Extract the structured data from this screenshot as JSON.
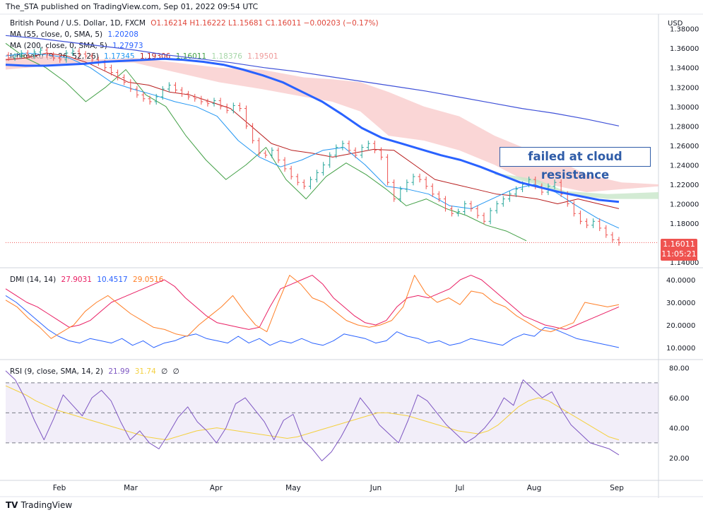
{
  "header": {
    "publisher": "The_STA published on TradingView.com, Sep 01, 2022 09:54 UTC"
  },
  "legend": {
    "symbol": "British Pound / U.S. Dollar, 1D, FXCM",
    "ohlc": "O1.16214 H1.16222 L1.15681 C1.16011 −0.00203 (−0.17%)",
    "ma55": {
      "label": "MA (55, close, 0, SMA, 5)",
      "value": "1.20208"
    },
    "ma200": {
      "label": "MA (200, close, 0, SMA, 5)",
      "value": "1.27973"
    },
    "ichimoku": {
      "label": "Ichimoku (9, 26, 52, 26)",
      "v1": "1.17345",
      "v2": "1.19306",
      "v3": "1.16011",
      "v4": "1.18376",
      "v5": "1.19501"
    },
    "dmi": {
      "label": "DMI (14, 14)",
      "v1": "27.9031",
      "v2": "10.4517",
      "v3": "29.0516"
    },
    "rsi": {
      "label": "RSI (9, close, SMA, 14, 2)",
      "v1": "21.99",
      "v2": "31.74",
      "v3": "∅",
      "v4": "∅"
    }
  },
  "annotation": "failed at cloud resistance",
  "price_tag": {
    "price": "1.16011",
    "countdown": "11:05:21"
  },
  "footer": {
    "brand": "TradingView",
    "logo": "TV logo"
  },
  "colors": {
    "up": "#26a69a",
    "down": "#ef5350",
    "ma55": "#2962ff",
    "ma200": "#3f51d8",
    "tenkan": "#2196f3",
    "kijun": "#b71c1c",
    "chikou": "#43a047",
    "cloud_bear": "#f8c8c8",
    "cloud_bull": "#c8e6c9",
    "dmi_plus": "#e91e63",
    "dmi_minus": "#2962ff",
    "adx": "#ff7f27",
    "rsi": "#7e57c2",
    "rsi_ma": "#f4d03f"
  },
  "chart_data": [
    {
      "type": "candlestick",
      "title": "British Pound / U.S. Dollar, 1D, FXCM",
      "currency_label": "USD",
      "ylim": [
        1.135,
        1.395
      ],
      "y_ticks": [
        "1.38000",
        "1.36000",
        "1.34000",
        "1.32000",
        "1.30000",
        "1.28000",
        "1.26000",
        "1.24000",
        "1.22000",
        "1.20000",
        "1.18000",
        "1.14000"
      ],
      "x_ticks": [
        "Feb",
        "Mar",
        "Apr",
        "May",
        "Jun",
        "Jul",
        "Aug",
        "Sep"
      ],
      "closes": [
        1.35,
        1.352,
        1.355,
        1.352,
        1.356,
        1.358,
        1.353,
        1.35,
        1.348,
        1.355,
        1.357,
        1.354,
        1.352,
        1.348,
        1.345,
        1.34,
        1.335,
        1.33,
        1.325,
        1.318,
        1.312,
        1.308,
        1.305,
        1.31,
        1.318,
        1.322,
        1.317,
        1.313,
        1.31,
        1.308,
        1.305,
        1.303,
        1.306,
        1.3,
        1.296,
        1.301,
        1.298,
        1.28,
        1.265,
        1.252,
        1.25,
        1.255,
        1.245,
        1.236,
        1.228,
        1.222,
        1.218,
        1.225,
        1.232,
        1.24,
        1.25,
        1.258,
        1.262,
        1.255,
        1.25,
        1.258,
        1.262,
        1.255,
        1.248,
        1.222,
        1.205,
        1.215,
        1.222,
        1.228,
        1.225,
        1.218,
        1.21,
        1.205,
        1.195,
        1.19,
        1.192,
        1.2,
        1.195,
        1.188,
        1.182,
        1.193,
        1.2,
        1.205,
        1.21,
        1.215,
        1.22,
        1.225,
        1.218,
        1.212,
        1.218,
        1.222,
        1.21,
        1.2,
        1.19,
        1.182,
        1.178,
        1.182,
        1.175,
        1.168,
        1.163,
        1.16
      ],
      "series": [
        {
          "name": "MA (55, close, 0, SMA, 5)",
          "values": [
            1.343,
            1.342,
            1.342,
            1.343,
            1.344,
            1.346,
            1.347,
            1.348,
            1.349,
            1.348,
            1.346,
            1.343,
            1.338,
            1.332,
            1.325,
            1.315,
            1.305,
            1.292,
            1.278,
            1.268,
            1.262,
            1.256,
            1.25,
            1.245,
            1.238,
            1.23,
            1.222,
            1.217,
            1.212,
            1.208,
            1.204,
            1.202
          ]
        },
        {
          "name": "MA (200, close, 0, SMA, 5)",
          "values": [
            1.373,
            1.37,
            1.366,
            1.362,
            1.358,
            1.353,
            1.349,
            1.345,
            1.34,
            1.336,
            1.331,
            1.326,
            1.321,
            1.316,
            1.31,
            1.304,
            1.298,
            1.293,
            1.287,
            1.28
          ]
        }
      ]
    },
    {
      "type": "line",
      "title": "DMI (14, 14)",
      "ylim": [
        5,
        45
      ],
      "y_ticks": [
        "40.0000",
        "30.0000",
        "20.0000",
        "10.0000"
      ],
      "series": [
        {
          "name": "DI+",
          "values": [
            36,
            33,
            30,
            28,
            25,
            22,
            19,
            20,
            22,
            26,
            30,
            32,
            34,
            36,
            38,
            40,
            37,
            32,
            28,
            24,
            21,
            20,
            19,
            18,
            19,
            28,
            36,
            38,
            40,
            42,
            38,
            32,
            28,
            24,
            21,
            20,
            22,
            28,
            32,
            33,
            32,
            34,
            36,
            40,
            42,
            40,
            36,
            32,
            28,
            24,
            22,
            20,
            19,
            18,
            20,
            22,
            24,
            26,
            28
          ]
        },
        {
          "name": "DI-",
          "values": [
            33,
            30,
            26,
            22,
            18,
            15,
            13,
            12,
            14,
            13,
            12,
            14,
            11,
            13,
            10,
            12,
            13,
            15,
            16,
            14,
            13,
            12,
            15,
            12,
            14,
            11,
            13,
            12,
            14,
            12,
            11,
            13,
            16,
            15,
            14,
            12,
            13,
            17,
            15,
            14,
            12,
            13,
            11,
            12,
            14,
            13,
            12,
            11,
            14,
            16,
            15,
            19,
            18,
            16,
            14,
            13,
            12,
            11,
            10
          ]
        },
        {
          "name": "ADX",
          "values": [
            31,
            28,
            23,
            19,
            14,
            17,
            20,
            26,
            30,
            33,
            29,
            25,
            22,
            19,
            18,
            16,
            15,
            20,
            24,
            28,
            33,
            26,
            20,
            17,
            30,
            42,
            38,
            32,
            30,
            26,
            22,
            20,
            19,
            20,
            22,
            28,
            42,
            34,
            30,
            32,
            29,
            35,
            34,
            30,
            28,
            24,
            21,
            18,
            17,
            19,
            21,
            30,
            29,
            28,
            29
          ]
        }
      ]
    },
    {
      "type": "line",
      "title": "RSI (9, close, SMA, 14, 2)",
      "ylim": [
        5,
        85
      ],
      "y_ticks": [
        "80.00",
        "60.00",
        "40.00",
        "20.00"
      ],
      "bands": [
        70,
        50,
        30
      ],
      "series": [
        {
          "name": "RSI",
          "values": [
            78,
            72,
            60,
            45,
            32,
            46,
            62,
            55,
            48,
            60,
            65,
            58,
            44,
            32,
            38,
            30,
            26,
            36,
            47,
            54,
            44,
            38,
            30,
            40,
            56,
            60,
            52,
            44,
            32,
            45,
            49,
            32,
            26,
            18,
            24,
            34,
            46,
            60,
            52,
            42,
            36,
            30,
            45,
            62,
            58,
            50,
            42,
            36,
            30,
            34,
            40,
            48,
            60,
            55,
            72,
            66,
            60,
            64,
            52,
            42,
            36,
            30,
            28,
            26,
            22
          ]
        },
        {
          "name": "RSI-based MA",
          "values": [
            68,
            65,
            62,
            58,
            55,
            52,
            50,
            48,
            46,
            44,
            42,
            40,
            38,
            36,
            34,
            33,
            32,
            34,
            36,
            38,
            39,
            40,
            39,
            38,
            37,
            36,
            35,
            34,
            33,
            34,
            36,
            38,
            40,
            42,
            44,
            46,
            48,
            50,
            50,
            49,
            48,
            46,
            44,
            42,
            40,
            38,
            37,
            36,
            38,
            42,
            48,
            54,
            58,
            60,
            58,
            54,
            50,
            46,
            42,
            38,
            34,
            32
          ]
        }
      ]
    }
  ]
}
